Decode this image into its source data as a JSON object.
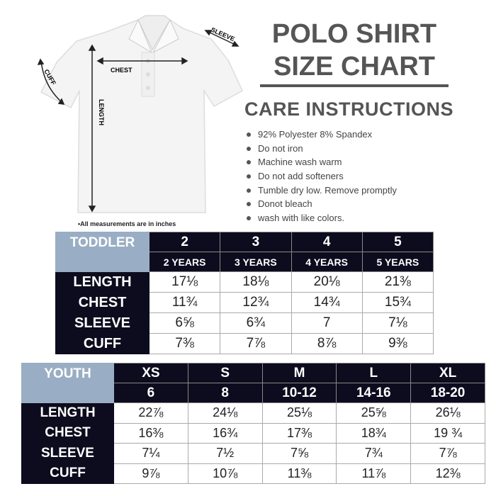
{
  "title_line1": "POLO SHIRT",
  "title_line2": "SIZE CHART",
  "care_heading": "CARE INSTRUCTIONS",
  "care_items": [
    "92% Polyester 8% Spandex",
    "Do not iron",
    "Machine wash warm",
    "Do not add softeners",
    "Tumble dry low. Remove promptly",
    "Donot bleach",
    "wash with like colors."
  ],
  "diagram_labels": {
    "chest": "CHEST",
    "sleeve": "SLEEVE",
    "cuff": "CUFF",
    "length": "LENGTH"
  },
  "note": "•All measurements are in inches",
  "colors": {
    "header": "#0d0c1e",
    "label_bg": "#99aec4",
    "title": "#555555"
  },
  "toddler": {
    "label": "TODDLER",
    "sizes": [
      "2",
      "3",
      "4",
      "5"
    ],
    "ages": [
      "2 YEARS",
      "3 YEARS",
      "4 YEARS",
      "5 YEARS"
    ],
    "rows": [
      {
        "name": "LENGTH",
        "values": [
          "17⅛",
          "18⅛",
          "20⅛",
          "21⅜"
        ]
      },
      {
        "name": "CHEST",
        "values": [
          "11¾",
          "12¾",
          "14¾",
          "15¾"
        ]
      },
      {
        "name": "SLEEVE",
        "values": [
          "6⅝",
          "6¾",
          "7",
          "7⅛"
        ]
      },
      {
        "name": "CUFF",
        "values": [
          "7⅜",
          "7⅞",
          "8⅞",
          "9⅜"
        ]
      }
    ]
  },
  "youth": {
    "label": "YOUTH",
    "sizes": [
      "XS",
      "S",
      "M",
      "L",
      "XL"
    ],
    "ages": [
      "6",
      "8",
      "10-12",
      "14-16",
      "18-20"
    ],
    "rows": [
      {
        "name": "LENGTH",
        "values": [
          "22⅞",
          "24⅛",
          "25⅛",
          "25⅝",
          "26⅛"
        ]
      },
      {
        "name": "CHEST",
        "values": [
          "16⅜",
          "16¾",
          "17⅜",
          "18¾",
          "19 ¾"
        ]
      },
      {
        "name": "SLEEVE",
        "values": [
          "7¼",
          "7½",
          "7⅝",
          "7¾",
          "7⅞"
        ]
      },
      {
        "name": "CUFF",
        "values": [
          "9⅞",
          "10⅞",
          "11⅜",
          "11⅞",
          "12⅜"
        ]
      }
    ]
  }
}
